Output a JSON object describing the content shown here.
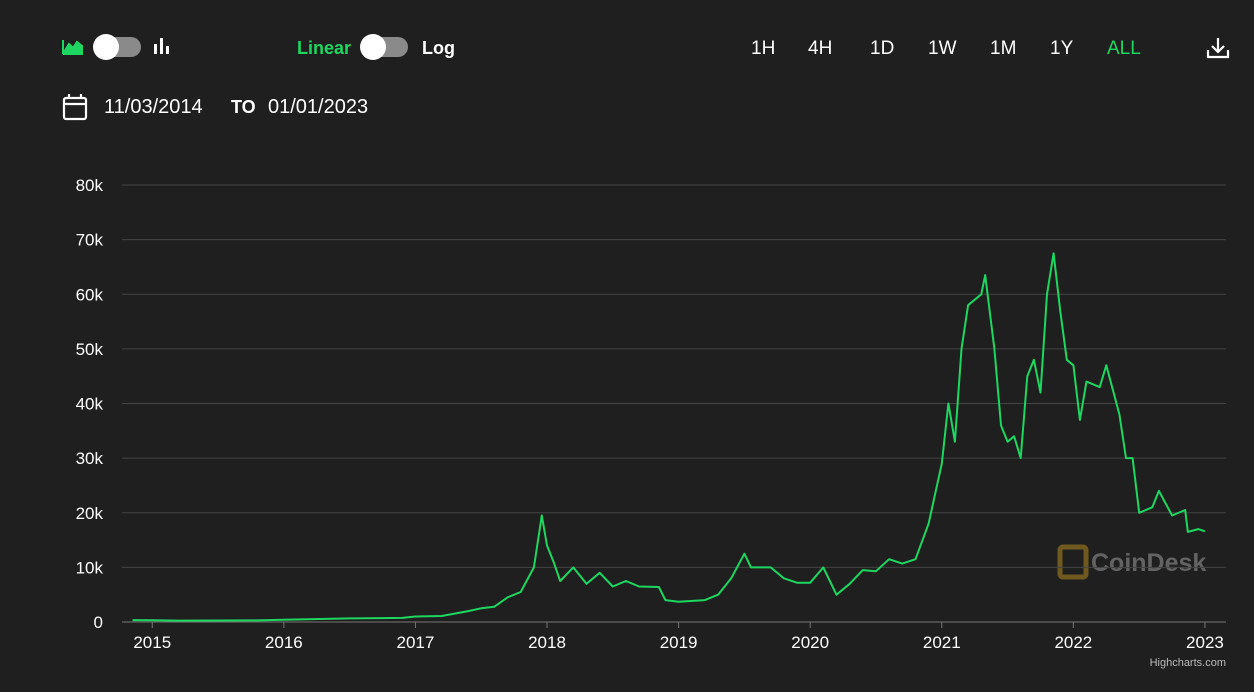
{
  "controls": {
    "scale_linear": "Linear",
    "scale_log": "Log",
    "ranges": [
      "1H",
      "4H",
      "1D",
      "1W",
      "1M",
      "1Y",
      "ALL"
    ],
    "date_from": "11/03/2014",
    "date_separator": "TO",
    "date_to": "01/01/2023"
  },
  "chart_data": {
    "type": "line",
    "color": "#1ed760",
    "watermark": "CoinDesk",
    "credits": "Highcharts.com",
    "grid": true,
    "x": [
      2014.85,
      2015.0,
      2015.2,
      2015.5,
      2015.8,
      2016.0,
      2016.5,
      2016.9,
      2017.0,
      2017.2,
      2017.4,
      2017.5,
      2017.6,
      2017.7,
      2017.8,
      2017.9,
      2017.96,
      2018.0,
      2018.05,
      2018.1,
      2018.2,
      2018.3,
      2018.4,
      2018.5,
      2018.6,
      2018.7,
      2018.85,
      2018.9,
      2019.0,
      2019.2,
      2019.3,
      2019.4,
      2019.5,
      2019.55,
      2019.7,
      2019.8,
      2019.9,
      2020.0,
      2020.1,
      2020.2,
      2020.3,
      2020.4,
      2020.5,
      2020.6,
      2020.7,
      2020.8,
      2020.9,
      2021.0,
      2021.05,
      2021.1,
      2021.15,
      2021.2,
      2021.3,
      2021.33,
      2021.4,
      2021.45,
      2021.5,
      2021.55,
      2021.6,
      2021.65,
      2021.7,
      2021.75,
      2021.8,
      2021.85,
      2021.9,
      2021.95,
      2022.0,
      2022.05,
      2022.1,
      2022.2,
      2022.25,
      2022.35,
      2022.4,
      2022.45,
      2022.5,
      2022.6,
      2022.65,
      2022.75,
      2022.85,
      2022.87,
      2022.95,
      2023.0
    ],
    "values": [
      350,
      320,
      250,
      270,
      300,
      430,
      650,
      750,
      1000,
      1100,
      2000,
      2500,
      2800,
      4500,
      5500,
      10000,
      19500,
      14000,
      11000,
      7500,
      10000,
      7000,
      9000,
      6500,
      7500,
      6500,
      6400,
      4000,
      3700,
      4000,
      5000,
      8000,
      12500,
      10000,
      10000,
      8000,
      7200,
      7200,
      10000,
      5000,
      7000,
      9500,
      9300,
      11500,
      10700,
      11500,
      18000,
      29000,
      40000,
      33000,
      50000,
      58000,
      60000,
      63500,
      50000,
      36000,
      33000,
      34000,
      30000,
      45000,
      48000,
      42000,
      60000,
      67500,
      57000,
      48000,
      47000,
      37000,
      44000,
      43000,
      47000,
      38000,
      30000,
      30000,
      20000,
      21000,
      24000,
      19500,
      20500,
      16500,
      17000,
      16600
    ],
    "xlim": [
      2014.77,
      2023.16
    ],
    "xticks": [
      2015,
      2016,
      2017,
      2018,
      2019,
      2020,
      2021,
      2022,
      2023
    ],
    "ylim": [
      0,
      80000
    ],
    "yticks": [
      0,
      {
        "value": 10000,
        "label": "10k"
      },
      {
        "value": 20000,
        "label": "20k"
      },
      {
        "value": 30000,
        "label": "30k"
      },
      {
        "value": 40000,
        "label": "40k"
      },
      {
        "value": 50000,
        "label": "50k"
      },
      {
        "value": 60000,
        "label": "60k"
      },
      {
        "value": 70000,
        "label": "70k"
      },
      {
        "value": 80000,
        "label": "80k"
      }
    ]
  }
}
